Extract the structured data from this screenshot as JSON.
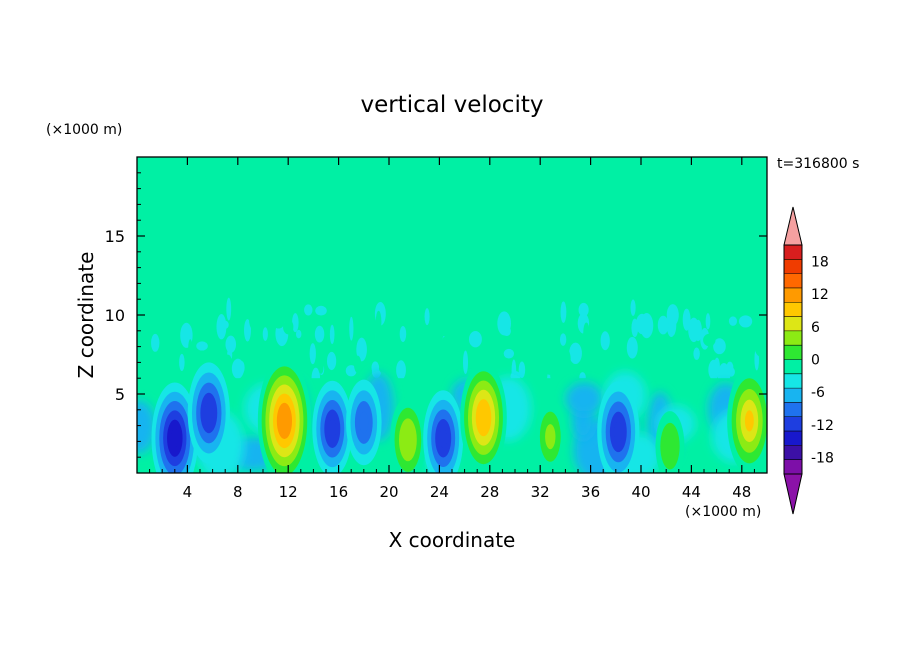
{
  "chart_data": {
    "type": "heatmap",
    "title": "vertical velocity",
    "xlabel": "X coordinate",
    "ylabel": "Z coordinate",
    "x_unit": "(×1000 m)",
    "y_unit": "(×1000 m)",
    "time_label": "t=316800 s",
    "xlim": [
      0,
      50
    ],
    "ylim": [
      0,
      20
    ],
    "x_ticks": [
      "4",
      "8",
      "12",
      "16",
      "20",
      "24",
      "28",
      "32",
      "36",
      "40",
      "44",
      "48"
    ],
    "y_ticks": [
      "5",
      "10",
      "15"
    ],
    "colorbar": {
      "tick_labels": [
        "18",
        "12",
        "6",
        "0",
        "-6",
        "-12",
        "-18"
      ],
      "tick_values": [
        18,
        12,
        6,
        0,
        -6,
        -12,
        -18
      ],
      "range": [
        -21,
        21
      ],
      "step": 3,
      "colors_low_to_high": [
        "#7d0fa8",
        "#3c10a6",
        "#1818cc",
        "#1e3ee0",
        "#1f72ee",
        "#18b4f0",
        "#16e6e6",
        "#00f0a4",
        "#2ee832",
        "#8ceb14",
        "#dde616",
        "#ffc800",
        "#ff9a00",
        "#ff6800",
        "#f03c00",
        "#d81e1e"
      ],
      "over_color": "#f5a0a0",
      "under_color": "#8b12a8"
    },
    "features": [
      {
        "x": 3,
        "z": 2.2,
        "peak": -13
      },
      {
        "x": 5.7,
        "z": 3.8,
        "peak": -11
      },
      {
        "x": 11.7,
        "z": 3.3,
        "peak": 16
      },
      {
        "x": 15.5,
        "z": 2.8,
        "peak": -10
      },
      {
        "x": 18,
        "z": 3.2,
        "peak": -8
      },
      {
        "x": 21.5,
        "z": 2.1,
        "peak": 8
      },
      {
        "x": 24.3,
        "z": 2.2,
        "peak": -10
      },
      {
        "x": 27.5,
        "z": 3.5,
        "peak": 13
      },
      {
        "x": 32.8,
        "z": 2.3,
        "peak": 6
      },
      {
        "x": 38.2,
        "z": 2.6,
        "peak": -11
      },
      {
        "x": 42.3,
        "z": 1.7,
        "peak": 5
      },
      {
        "x": 48.6,
        "z": 3.3,
        "peak": 12
      }
    ]
  }
}
